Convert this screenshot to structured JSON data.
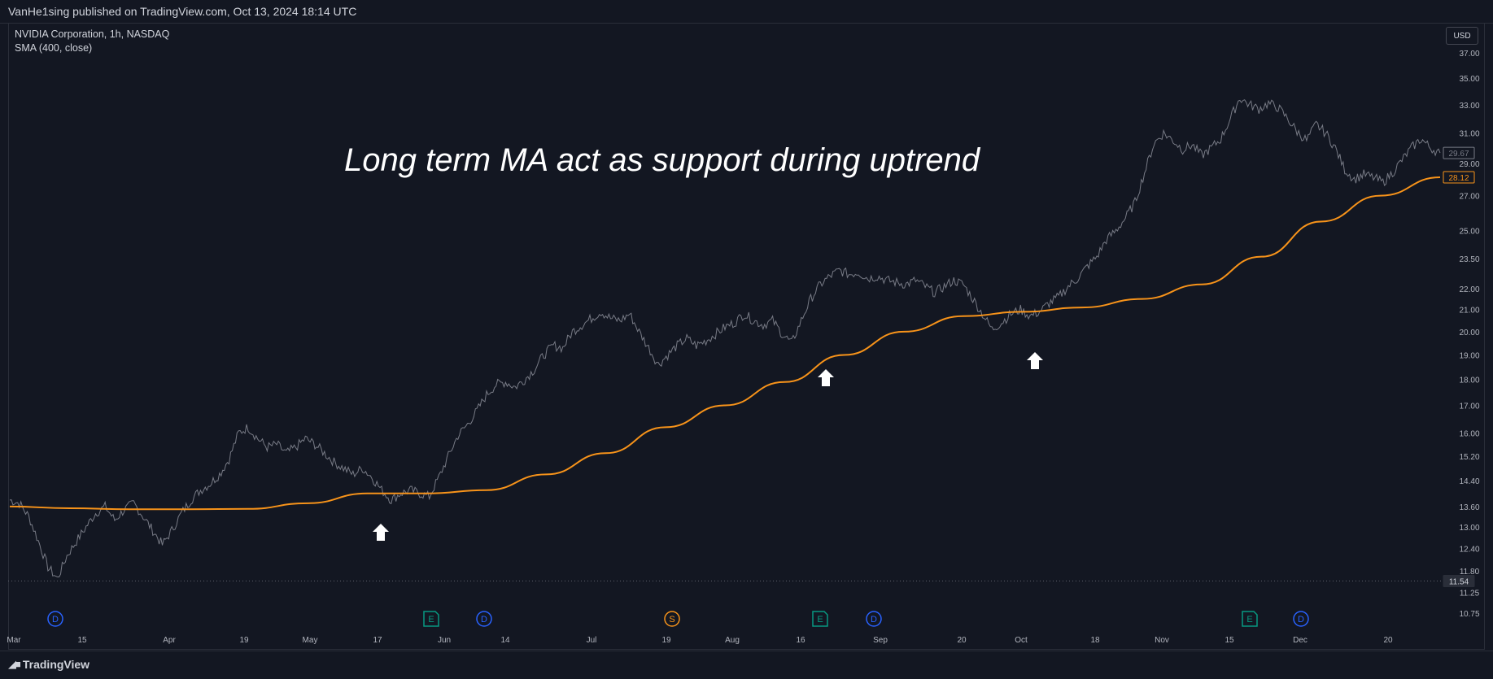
{
  "header": {
    "published_by": "VanHe1sing published on TradingView.com, Oct 13, 2024 18:14 UTC"
  },
  "legend": {
    "symbol": "NVIDIA Corporation, 1h, NASDAQ",
    "indicator": "SMA (400, close)"
  },
  "currency_button": "USD",
  "annotation": "Long term MA act as support during uptrend",
  "footer": {
    "brand": "TradingView"
  },
  "colors": {
    "background": "#131722",
    "price": "#787b86",
    "sma": "#f7931a",
    "arrow": "#ffffff",
    "dividend": "#2962ff",
    "earnings": "#089981",
    "split": "#f7931a"
  },
  "chart_data": {
    "type": "line",
    "title": "NVIDIA Corporation, 1h, NASDAQ",
    "xlabel": "",
    "ylabel": "",
    "y_scale": "log",
    "ylim": [
      10.5,
      38
    ],
    "x_tick_labels": [
      "Mar",
      "15",
      "Apr",
      "19",
      "May",
      "17",
      "Jun",
      "14",
      "Jul",
      "19",
      "Aug",
      "16",
      "Sep",
      "20",
      "Oct",
      "18",
      "Nov",
      "15",
      "Dec",
      "20"
    ],
    "y_tick_labels": [
      "37.00",
      "35.00",
      "33.00",
      "31.00",
      "29.00",
      "27.00",
      "25.00",
      "23.50",
      "22.00",
      "21.00",
      "20.00",
      "19.00",
      "18.00",
      "17.00",
      "16.00",
      "15.20",
      "14.40",
      "13.60",
      "13.00",
      "12.40",
      "11.80",
      "11.25",
      "10.75"
    ],
    "series": [
      {
        "role": "price",
        "values": [
          13.8,
          13.7,
          13.3,
          12.6,
          11.9,
          11.6,
          12.2,
          12.6,
          13.0,
          13.4,
          13.6,
          13.2,
          13.5,
          13.7,
          13.3,
          12.9,
          12.5,
          12.9,
          13.4,
          13.8,
          14.1,
          14.3,
          14.6,
          15.1,
          16.0,
          16.2,
          15.8,
          15.5,
          15.6,
          15.3,
          15.5,
          15.8,
          15.6,
          15.3,
          15.0,
          14.8,
          14.6,
          14.8,
          14.5,
          14.1,
          13.8,
          14.0,
          14.1,
          14.0,
          13.9,
          14.5,
          15.2,
          15.9,
          16.3,
          16.8,
          17.4,
          17.8,
          17.9,
          17.7,
          18.0,
          18.4,
          19.0,
          19.4,
          19.3,
          20.0,
          20.3,
          20.6,
          20.9,
          20.6,
          20.5,
          20.8,
          20.0,
          19.3,
          18.6,
          19.0,
          19.4,
          19.7,
          19.4,
          19.6,
          19.9,
          20.2,
          20.4,
          20.8,
          20.5,
          20.3,
          20.5,
          19.9,
          19.5,
          20.5,
          21.5,
          22.2,
          22.6,
          22.9,
          22.7,
          22.8,
          22.5,
          22.6,
          22.4,
          22.3,
          22.2,
          22.4,
          22.1,
          21.8,
          22.1,
          22.4,
          22.2,
          21.5,
          20.8,
          20.1,
          20.4,
          20.8,
          21.0,
          20.7,
          20.9,
          21.3,
          21.6,
          22.1,
          22.5,
          23.1,
          23.6,
          24.5,
          25.0,
          25.7,
          26.6,
          28.4,
          30.3,
          31.0,
          30.5,
          29.9,
          30.2,
          29.5,
          30.0,
          30.6,
          32.0,
          33.5,
          33.0,
          32.7,
          33.1,
          32.8,
          32.0,
          31.1,
          30.5,
          31.6,
          31.0,
          30.0,
          28.6,
          28.0,
          28.3,
          28.1,
          27.8,
          28.4,
          29.2,
          30.0,
          30.6,
          30.0,
          29.67
        ],
        "x_fraction_note": "values span the full visible x-range evenly"
      },
      {
        "name": "SMA (400, close)",
        "role": "sma",
        "values": [
          13.6,
          13.55,
          13.52,
          13.52,
          13.53,
          13.7,
          14.0,
          14.0,
          14.1,
          14.6,
          15.3,
          16.2,
          17.0,
          17.9,
          19.0,
          20.0,
          20.7,
          20.9,
          21.1,
          21.5,
          22.2,
          23.6,
          25.5,
          27.0,
          28.12
        ]
      }
    ],
    "last_price_label": "29.67",
    "sma_label": "28.12",
    "low_line_label": "11.54",
    "support_arrows": [
      "May 17",
      "Aug 20",
      "Oct 3"
    ],
    "events": [
      {
        "type": "D",
        "label": "D"
      },
      {
        "type": "E",
        "label": "E"
      },
      {
        "type": "D",
        "label": "D"
      },
      {
        "type": "S",
        "label": "S"
      },
      {
        "type": "E",
        "label": "E"
      },
      {
        "type": "D",
        "label": "D"
      },
      {
        "type": "E",
        "label": "E"
      },
      {
        "type": "D",
        "label": "D"
      }
    ]
  }
}
